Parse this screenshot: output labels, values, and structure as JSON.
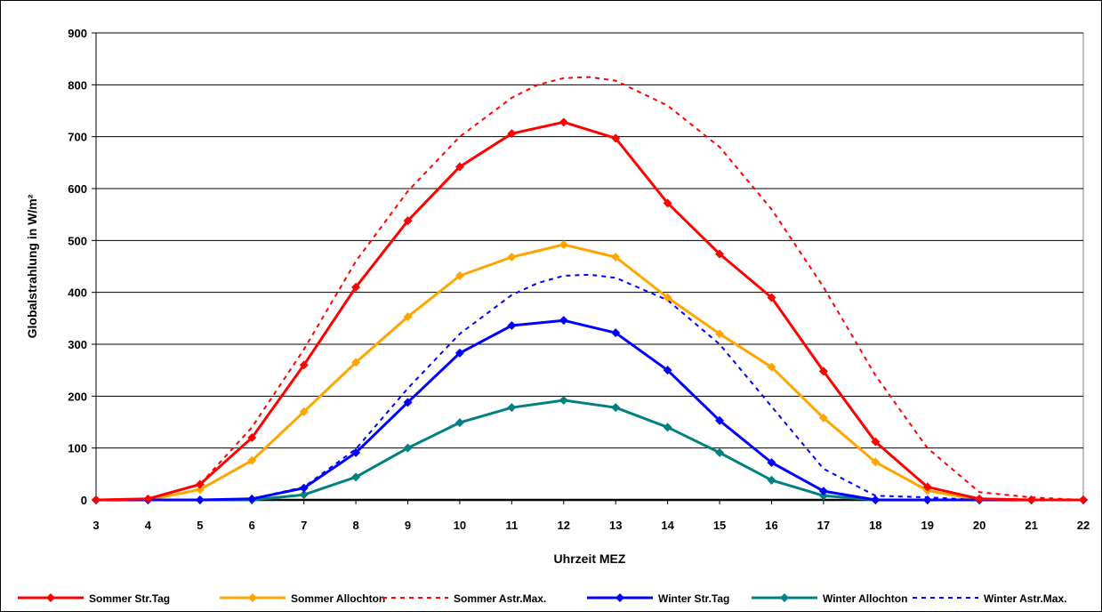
{
  "chart_data": {
    "type": "line",
    "title": "",
    "xlabel": "Uhrzeit MEZ",
    "ylabel": "Globalstrahlung in W/m²",
    "xlim": [
      3,
      22
    ],
    "ylim": [
      0,
      900
    ],
    "x_ticks": [
      "3",
      "4",
      "5",
      "6",
      "7",
      "8",
      "9",
      "10",
      "11",
      "12",
      "13",
      "14",
      "15",
      "16",
      "17",
      "18",
      "19",
      "20",
      "21",
      "22"
    ],
    "y_ticks": [
      "0",
      "100",
      "200",
      "300",
      "400",
      "500",
      "600",
      "700",
      "800",
      "900"
    ],
    "grid": "horizontal",
    "legend_position": "bottom",
    "series": [
      {
        "name": "Sommer Str.Tag",
        "color": "#ff0000",
        "style": "solid",
        "marker": "diamond",
        "x": [
          3,
          4,
          5,
          6,
          7,
          8,
          9,
          10,
          11,
          12,
          13,
          14,
          15,
          16,
          17,
          18,
          19,
          20,
          21,
          22
        ],
        "values": [
          0,
          2,
          30,
          120,
          260,
          410,
          538,
          642,
          706,
          728,
          697,
          572,
          474,
          390,
          248,
          112,
          25,
          2,
          0,
          0
        ]
      },
      {
        "name": "Sommer Allochton",
        "color": "#ffa500",
        "style": "solid",
        "marker": "diamond",
        "x": [
          3,
          4,
          5,
          6,
          7,
          8,
          9,
          10,
          11,
          12,
          13,
          14,
          15,
          16,
          17,
          18,
          19,
          20,
          21,
          22
        ],
        "values": [
          0,
          0,
          20,
          76,
          170,
          265,
          353,
          432,
          468,
          492,
          468,
          390,
          320,
          256,
          158,
          73,
          18,
          0,
          0,
          0
        ]
      },
      {
        "name": "Sommer Astr.Max.",
        "color": "#ff0000",
        "style": "dashed",
        "marker": "none",
        "x": [
          3,
          4,
          5,
          6,
          7,
          8,
          9,
          10,
          11,
          11.5,
          12,
          12.5,
          13,
          14,
          15,
          16,
          17,
          18,
          19,
          20,
          21,
          22
        ],
        "values": [
          0,
          2,
          30,
          140,
          290,
          460,
          595,
          700,
          775,
          800,
          813,
          815,
          808,
          760,
          680,
          560,
          410,
          240,
          100,
          15,
          5,
          0
        ]
      },
      {
        "name": "Winter Str.Tag",
        "color": "#0000ff",
        "style": "solid",
        "marker": "diamond",
        "x": [
          3,
          4,
          5,
          6,
          7,
          8,
          9,
          10,
          11,
          12,
          13,
          14,
          15,
          16,
          17,
          18,
          19,
          20,
          21,
          22
        ],
        "values": [
          0,
          0,
          0,
          2,
          23,
          91,
          188,
          283,
          336,
          346,
          322,
          250,
          153,
          72,
          17,
          0,
          0,
          0,
          0,
          0
        ]
      },
      {
        "name": "Winter Allochton",
        "color": "#008080",
        "style": "solid",
        "marker": "diamond",
        "x": [
          3,
          4,
          5,
          6,
          7,
          8,
          9,
          10,
          11,
          12,
          13,
          14,
          15,
          16,
          17,
          18,
          19,
          20,
          21,
          22
        ],
        "values": [
          0,
          0,
          0,
          0,
          10,
          44,
          100,
          149,
          178,
          192,
          178,
          140,
          91,
          38,
          8,
          0,
          0,
          0,
          0,
          0
        ]
      },
      {
        "name": "Winter Astr.Max.",
        "color": "#0000ff",
        "style": "dashed",
        "marker": "none",
        "x": [
          3,
          4,
          5,
          6,
          7,
          8,
          9,
          10,
          11,
          11.5,
          12,
          12.5,
          13,
          14,
          15,
          16,
          17,
          18,
          19,
          20,
          21,
          22
        ],
        "values": [
          0,
          0,
          0,
          2,
          25,
          98,
          215,
          320,
          395,
          418,
          432,
          434,
          428,
          385,
          300,
          180,
          60,
          8,
          5,
          0,
          0,
          0
        ]
      }
    ]
  }
}
